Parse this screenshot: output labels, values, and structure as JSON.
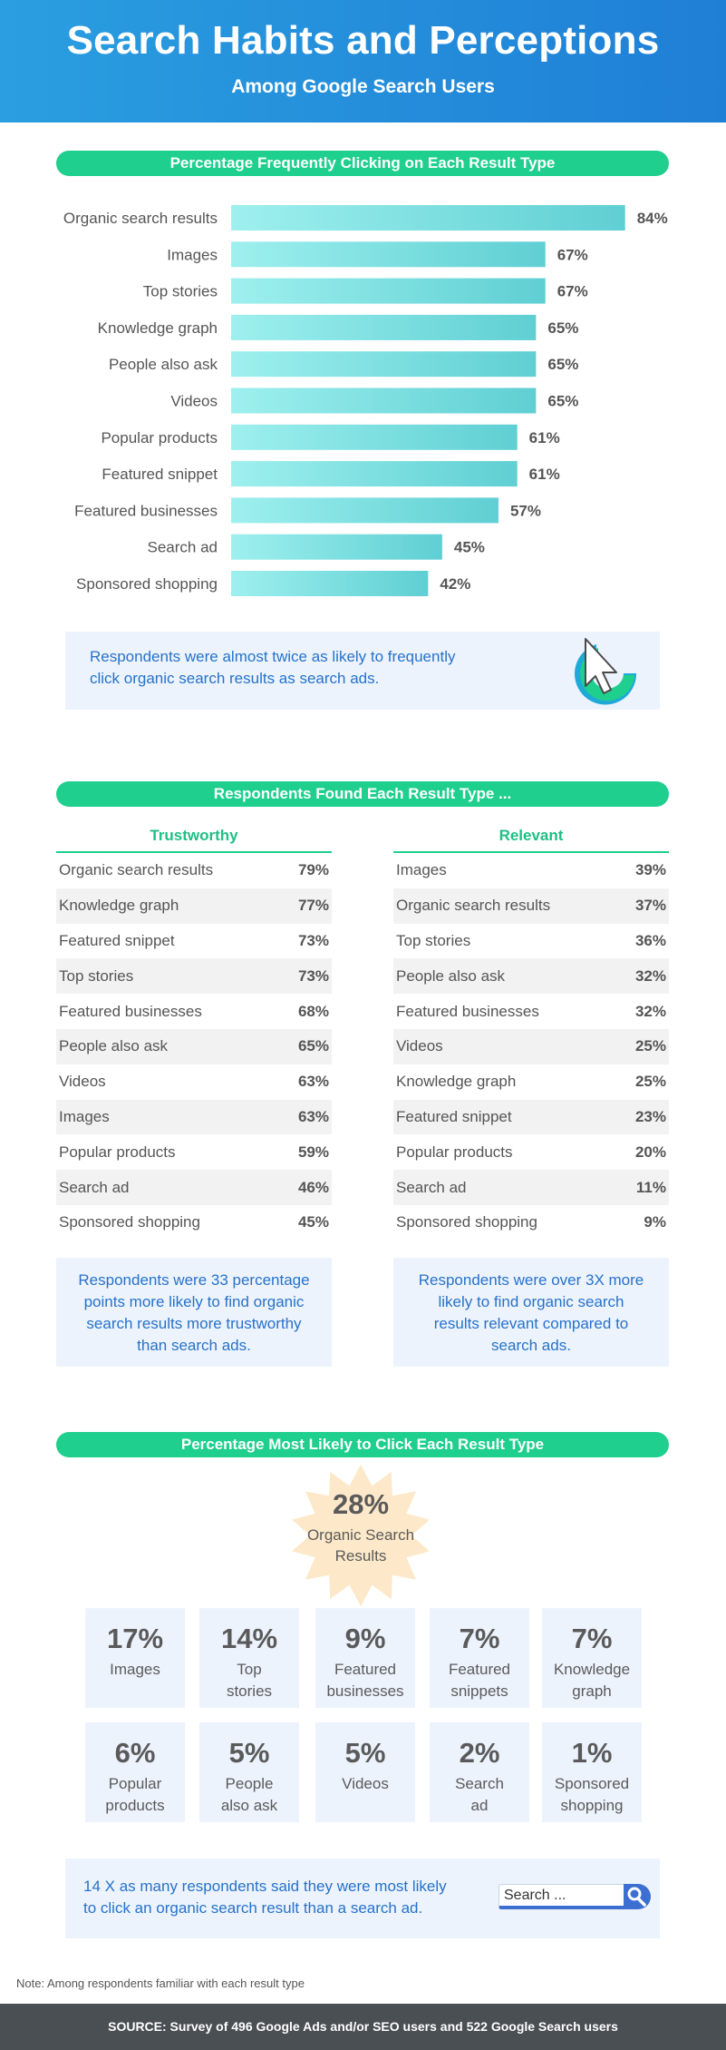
{
  "header": {
    "title": "Search Habits and Perceptions",
    "subtitle": "Among Google Search Users"
  },
  "section1": {
    "heading": "Percentage Frequently Clicking on Each Result Type",
    "callout": [
      "Respondents were almost twice as likely to frequently",
      "click organic search results as search ads."
    ]
  },
  "chart_data": {
    "type": "bar",
    "orientation": "horizontal",
    "title": "Percentage Frequently Clicking on Each Result Type",
    "categories": [
      "Organic search results",
      "Images",
      "Top stories",
      "Knowledge graph",
      "People also ask",
      "Videos",
      "Popular products",
      "Featured snippet",
      "Featured businesses",
      "Search ad",
      "Sponsored shopping"
    ],
    "values": [
      84,
      67,
      67,
      65,
      65,
      65,
      61,
      61,
      57,
      45,
      42
    ],
    "value_labels": [
      "84%",
      "67%",
      "67%",
      "65%",
      "65%",
      "65%",
      "61%",
      "61%",
      "57%",
      "45%",
      "42%"
    ],
    "xlim": [
      0,
      100
    ],
    "grid": false,
    "color": "#7fe3e4"
  },
  "section2": {
    "heading": "Respondents Found Each Result Type ...",
    "trustworthy": {
      "title": "Trustworthy",
      "rows": [
        {
          "label": "Organic search results",
          "value": "79%"
        },
        {
          "label": "Knowledge graph",
          "value": "77%"
        },
        {
          "label": "Featured snippet",
          "value": "73%"
        },
        {
          "label": "Top stories",
          "value": "73%"
        },
        {
          "label": "Featured businesses",
          "value": "68%"
        },
        {
          "label": "People also ask",
          "value": "65%"
        },
        {
          "label": "Videos",
          "value": "63%"
        },
        {
          "label": "Images",
          "value": "63%"
        },
        {
          "label": "Popular products",
          "value": "59%"
        },
        {
          "label": "Search ad",
          "value": "46%"
        },
        {
          "label": "Sponsored shopping",
          "value": "45%"
        }
      ],
      "note": [
        "Respondents were 33 percentage",
        "points more likely to find organic",
        "search results more trustworthy",
        "than search ads."
      ]
    },
    "relevant": {
      "title": "Relevant",
      "rows": [
        {
          "label": "Images",
          "value": "39%"
        },
        {
          "label": "Organic search results",
          "value": "37%"
        },
        {
          "label": "Top stories",
          "value": "36%"
        },
        {
          "label": "People also ask",
          "value": "32%"
        },
        {
          "label": "Featured businesses",
          "value": "32%"
        },
        {
          "label": "Videos",
          "value": "25%"
        },
        {
          "label": "Knowledge graph",
          "value": "25%"
        },
        {
          "label": "Featured snippet",
          "value": "23%"
        },
        {
          "label": "Popular products",
          "value": "20%"
        },
        {
          "label": "Search ad",
          "value": "11%"
        },
        {
          "label": "Sponsored shopping",
          "value": "9%"
        }
      ],
      "note": [
        "Respondents were over 3X more",
        "likely to find organic search",
        "results relevant compared to",
        "search ads."
      ]
    }
  },
  "section3": {
    "heading": "Percentage Most Likely to Click Each Result Type",
    "top": {
      "value": "28%",
      "label": [
        "Organic Search",
        "Results"
      ]
    },
    "tiles": [
      {
        "value": "17%",
        "label": [
          "Images"
        ]
      },
      {
        "value": "14%",
        "label": [
          "Top",
          "stories"
        ]
      },
      {
        "value": "9%",
        "label": [
          "Featured",
          "businesses"
        ]
      },
      {
        "value": "7%",
        "label": [
          "Featured",
          "snippets"
        ]
      },
      {
        "value": "7%",
        "label": [
          "Knowledge",
          "graph"
        ]
      },
      {
        "value": "6%",
        "label": [
          "Popular",
          "products"
        ]
      },
      {
        "value": "5%",
        "label": [
          "People",
          "also ask"
        ]
      },
      {
        "value": "5%",
        "label": [
          "Videos"
        ]
      },
      {
        "value": "2%",
        "label": [
          "Search",
          "ad"
        ]
      },
      {
        "value": "1%",
        "label": [
          "Sponsored",
          "shopping"
        ]
      }
    ],
    "callout": [
      "14 X as many respondents said they were most likely",
      "to click an organic search result than a search ad."
    ],
    "search_placeholder": "Search ..."
  },
  "note": "Note: Among respondents familiar with each result type",
  "footer": "SOURCE: Survey of 496 Google Ads and/or SEO users and 522 Google Search users",
  "colors": {
    "accent": "#1fcf8e",
    "header": "#1f7fd6",
    "callout_bg": "#edf3fd",
    "callout_text": "#2672c8",
    "bar": "#7fe3e4"
  }
}
